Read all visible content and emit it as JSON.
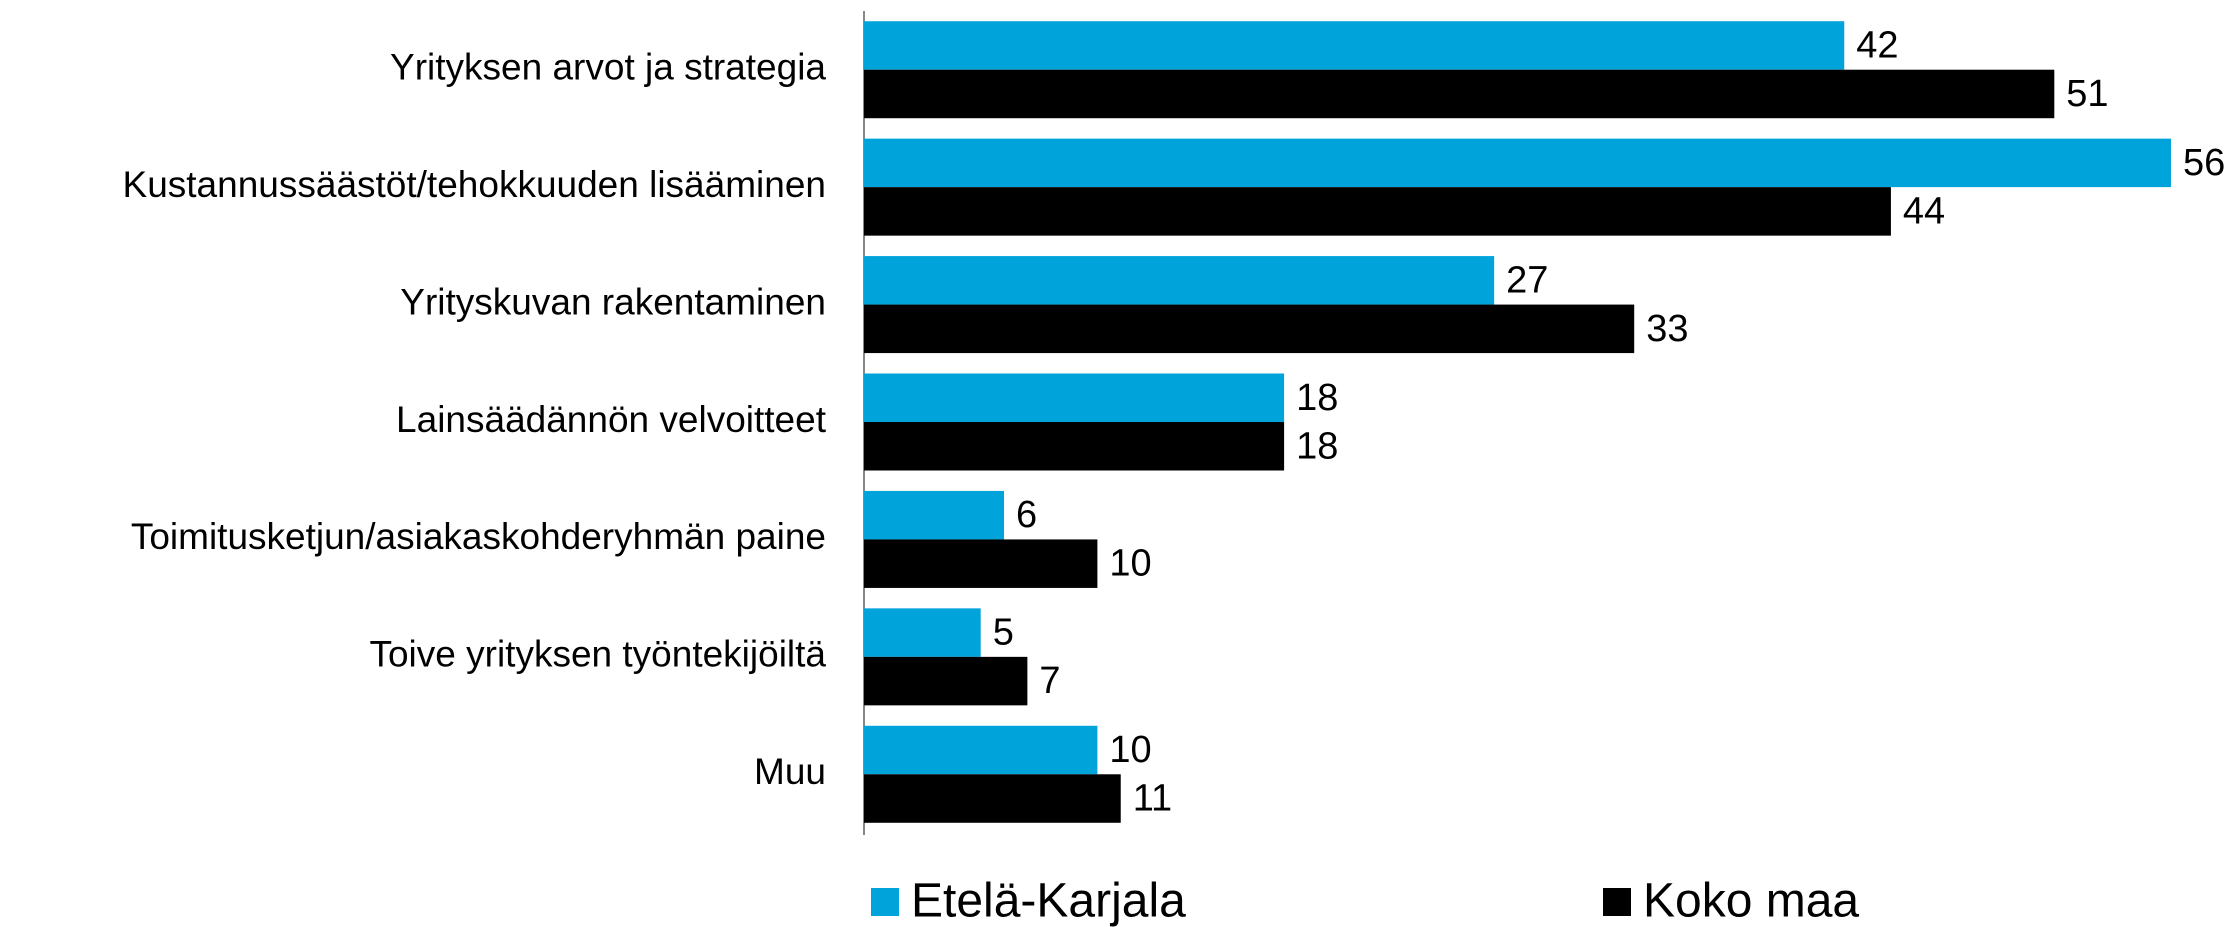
{
  "chart_data": {
    "type": "barh",
    "categories": [
      "Yrityksen arvot ja strategia",
      "Kustannussäästöt/tehokkuuden lisääminen",
      "Yrityskuvan rakentaminen",
      "Lainsäädännön velvoitteet",
      "Toimitusketjun/asiakaskohderyhmän paine",
      "Toive yrityksen työntekijöiltä",
      "Muu"
    ],
    "series": [
      {
        "name": "Etelä-Karjala",
        "color": "#00a3da",
        "values": [
          42,
          56,
          27,
          18,
          6,
          5,
          10
        ]
      },
      {
        "name": "Koko maa",
        "color": "#000000",
        "values": [
          51,
          44,
          33,
          18,
          10,
          7,
          11
        ]
      }
    ],
    "xlim": [
      0,
      56
    ],
    "legend": "bottom"
  }
}
